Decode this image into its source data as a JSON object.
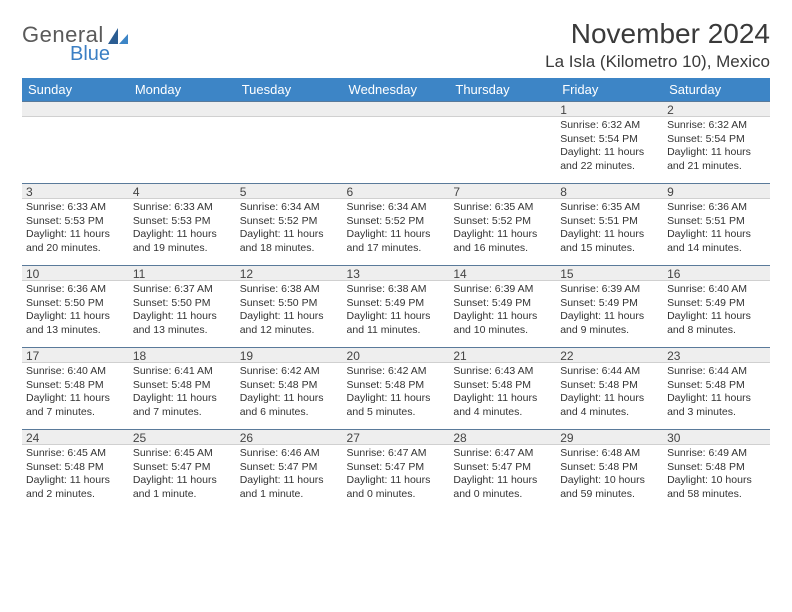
{
  "logo": {
    "general": "General",
    "blue": "Blue"
  },
  "title": "November 2024",
  "subtitle": "La Isla (Kilometro 10), Mexico",
  "headers": [
    "Sunday",
    "Monday",
    "Tuesday",
    "Wednesday",
    "Thursday",
    "Friday",
    "Saturday"
  ],
  "header_bg": "#3d85c6",
  "header_fg": "#ffffff",
  "daynum_bg": "#eeeeee",
  "daynum_border_top": "#5a7a9a",
  "weeks": [
    [
      {
        "num": "",
        "sunrise": "",
        "sunset": "",
        "daylight": ""
      },
      {
        "num": "",
        "sunrise": "",
        "sunset": "",
        "daylight": ""
      },
      {
        "num": "",
        "sunrise": "",
        "sunset": "",
        "daylight": ""
      },
      {
        "num": "",
        "sunrise": "",
        "sunset": "",
        "daylight": ""
      },
      {
        "num": "",
        "sunrise": "",
        "sunset": "",
        "daylight": ""
      },
      {
        "num": "1",
        "sunrise": "Sunrise: 6:32 AM",
        "sunset": "Sunset: 5:54 PM",
        "daylight": "Daylight: 11 hours and 22 minutes."
      },
      {
        "num": "2",
        "sunrise": "Sunrise: 6:32 AM",
        "sunset": "Sunset: 5:54 PM",
        "daylight": "Daylight: 11 hours and 21 minutes."
      }
    ],
    [
      {
        "num": "3",
        "sunrise": "Sunrise: 6:33 AM",
        "sunset": "Sunset: 5:53 PM",
        "daylight": "Daylight: 11 hours and 20 minutes."
      },
      {
        "num": "4",
        "sunrise": "Sunrise: 6:33 AM",
        "sunset": "Sunset: 5:53 PM",
        "daylight": "Daylight: 11 hours and 19 minutes."
      },
      {
        "num": "5",
        "sunrise": "Sunrise: 6:34 AM",
        "sunset": "Sunset: 5:52 PM",
        "daylight": "Daylight: 11 hours and 18 minutes."
      },
      {
        "num": "6",
        "sunrise": "Sunrise: 6:34 AM",
        "sunset": "Sunset: 5:52 PM",
        "daylight": "Daylight: 11 hours and 17 minutes."
      },
      {
        "num": "7",
        "sunrise": "Sunrise: 6:35 AM",
        "sunset": "Sunset: 5:52 PM",
        "daylight": "Daylight: 11 hours and 16 minutes."
      },
      {
        "num": "8",
        "sunrise": "Sunrise: 6:35 AM",
        "sunset": "Sunset: 5:51 PM",
        "daylight": "Daylight: 11 hours and 15 minutes."
      },
      {
        "num": "9",
        "sunrise": "Sunrise: 6:36 AM",
        "sunset": "Sunset: 5:51 PM",
        "daylight": "Daylight: 11 hours and 14 minutes."
      }
    ],
    [
      {
        "num": "10",
        "sunrise": "Sunrise: 6:36 AM",
        "sunset": "Sunset: 5:50 PM",
        "daylight": "Daylight: 11 hours and 13 minutes."
      },
      {
        "num": "11",
        "sunrise": "Sunrise: 6:37 AM",
        "sunset": "Sunset: 5:50 PM",
        "daylight": "Daylight: 11 hours and 13 minutes."
      },
      {
        "num": "12",
        "sunrise": "Sunrise: 6:38 AM",
        "sunset": "Sunset: 5:50 PM",
        "daylight": "Daylight: 11 hours and 12 minutes."
      },
      {
        "num": "13",
        "sunrise": "Sunrise: 6:38 AM",
        "sunset": "Sunset: 5:49 PM",
        "daylight": "Daylight: 11 hours and 11 minutes."
      },
      {
        "num": "14",
        "sunrise": "Sunrise: 6:39 AM",
        "sunset": "Sunset: 5:49 PM",
        "daylight": "Daylight: 11 hours and 10 minutes."
      },
      {
        "num": "15",
        "sunrise": "Sunrise: 6:39 AM",
        "sunset": "Sunset: 5:49 PM",
        "daylight": "Daylight: 11 hours and 9 minutes."
      },
      {
        "num": "16",
        "sunrise": "Sunrise: 6:40 AM",
        "sunset": "Sunset: 5:49 PM",
        "daylight": "Daylight: 11 hours and 8 minutes."
      }
    ],
    [
      {
        "num": "17",
        "sunrise": "Sunrise: 6:40 AM",
        "sunset": "Sunset: 5:48 PM",
        "daylight": "Daylight: 11 hours and 7 minutes."
      },
      {
        "num": "18",
        "sunrise": "Sunrise: 6:41 AM",
        "sunset": "Sunset: 5:48 PM",
        "daylight": "Daylight: 11 hours and 7 minutes."
      },
      {
        "num": "19",
        "sunrise": "Sunrise: 6:42 AM",
        "sunset": "Sunset: 5:48 PM",
        "daylight": "Daylight: 11 hours and 6 minutes."
      },
      {
        "num": "20",
        "sunrise": "Sunrise: 6:42 AM",
        "sunset": "Sunset: 5:48 PM",
        "daylight": "Daylight: 11 hours and 5 minutes."
      },
      {
        "num": "21",
        "sunrise": "Sunrise: 6:43 AM",
        "sunset": "Sunset: 5:48 PM",
        "daylight": "Daylight: 11 hours and 4 minutes."
      },
      {
        "num": "22",
        "sunrise": "Sunrise: 6:44 AM",
        "sunset": "Sunset: 5:48 PM",
        "daylight": "Daylight: 11 hours and 4 minutes."
      },
      {
        "num": "23",
        "sunrise": "Sunrise: 6:44 AM",
        "sunset": "Sunset: 5:48 PM",
        "daylight": "Daylight: 11 hours and 3 minutes."
      }
    ],
    [
      {
        "num": "24",
        "sunrise": "Sunrise: 6:45 AM",
        "sunset": "Sunset: 5:48 PM",
        "daylight": "Daylight: 11 hours and 2 minutes."
      },
      {
        "num": "25",
        "sunrise": "Sunrise: 6:45 AM",
        "sunset": "Sunset: 5:47 PM",
        "daylight": "Daylight: 11 hours and 1 minute."
      },
      {
        "num": "26",
        "sunrise": "Sunrise: 6:46 AM",
        "sunset": "Sunset: 5:47 PM",
        "daylight": "Daylight: 11 hours and 1 minute."
      },
      {
        "num": "27",
        "sunrise": "Sunrise: 6:47 AM",
        "sunset": "Sunset: 5:47 PM",
        "daylight": "Daylight: 11 hours and 0 minutes."
      },
      {
        "num": "28",
        "sunrise": "Sunrise: 6:47 AM",
        "sunset": "Sunset: 5:47 PM",
        "daylight": "Daylight: 11 hours and 0 minutes."
      },
      {
        "num": "29",
        "sunrise": "Sunrise: 6:48 AM",
        "sunset": "Sunset: 5:48 PM",
        "daylight": "Daylight: 10 hours and 59 minutes."
      },
      {
        "num": "30",
        "sunrise": "Sunrise: 6:49 AM",
        "sunset": "Sunset: 5:48 PM",
        "daylight": "Daylight: 10 hours and 58 minutes."
      }
    ]
  ]
}
